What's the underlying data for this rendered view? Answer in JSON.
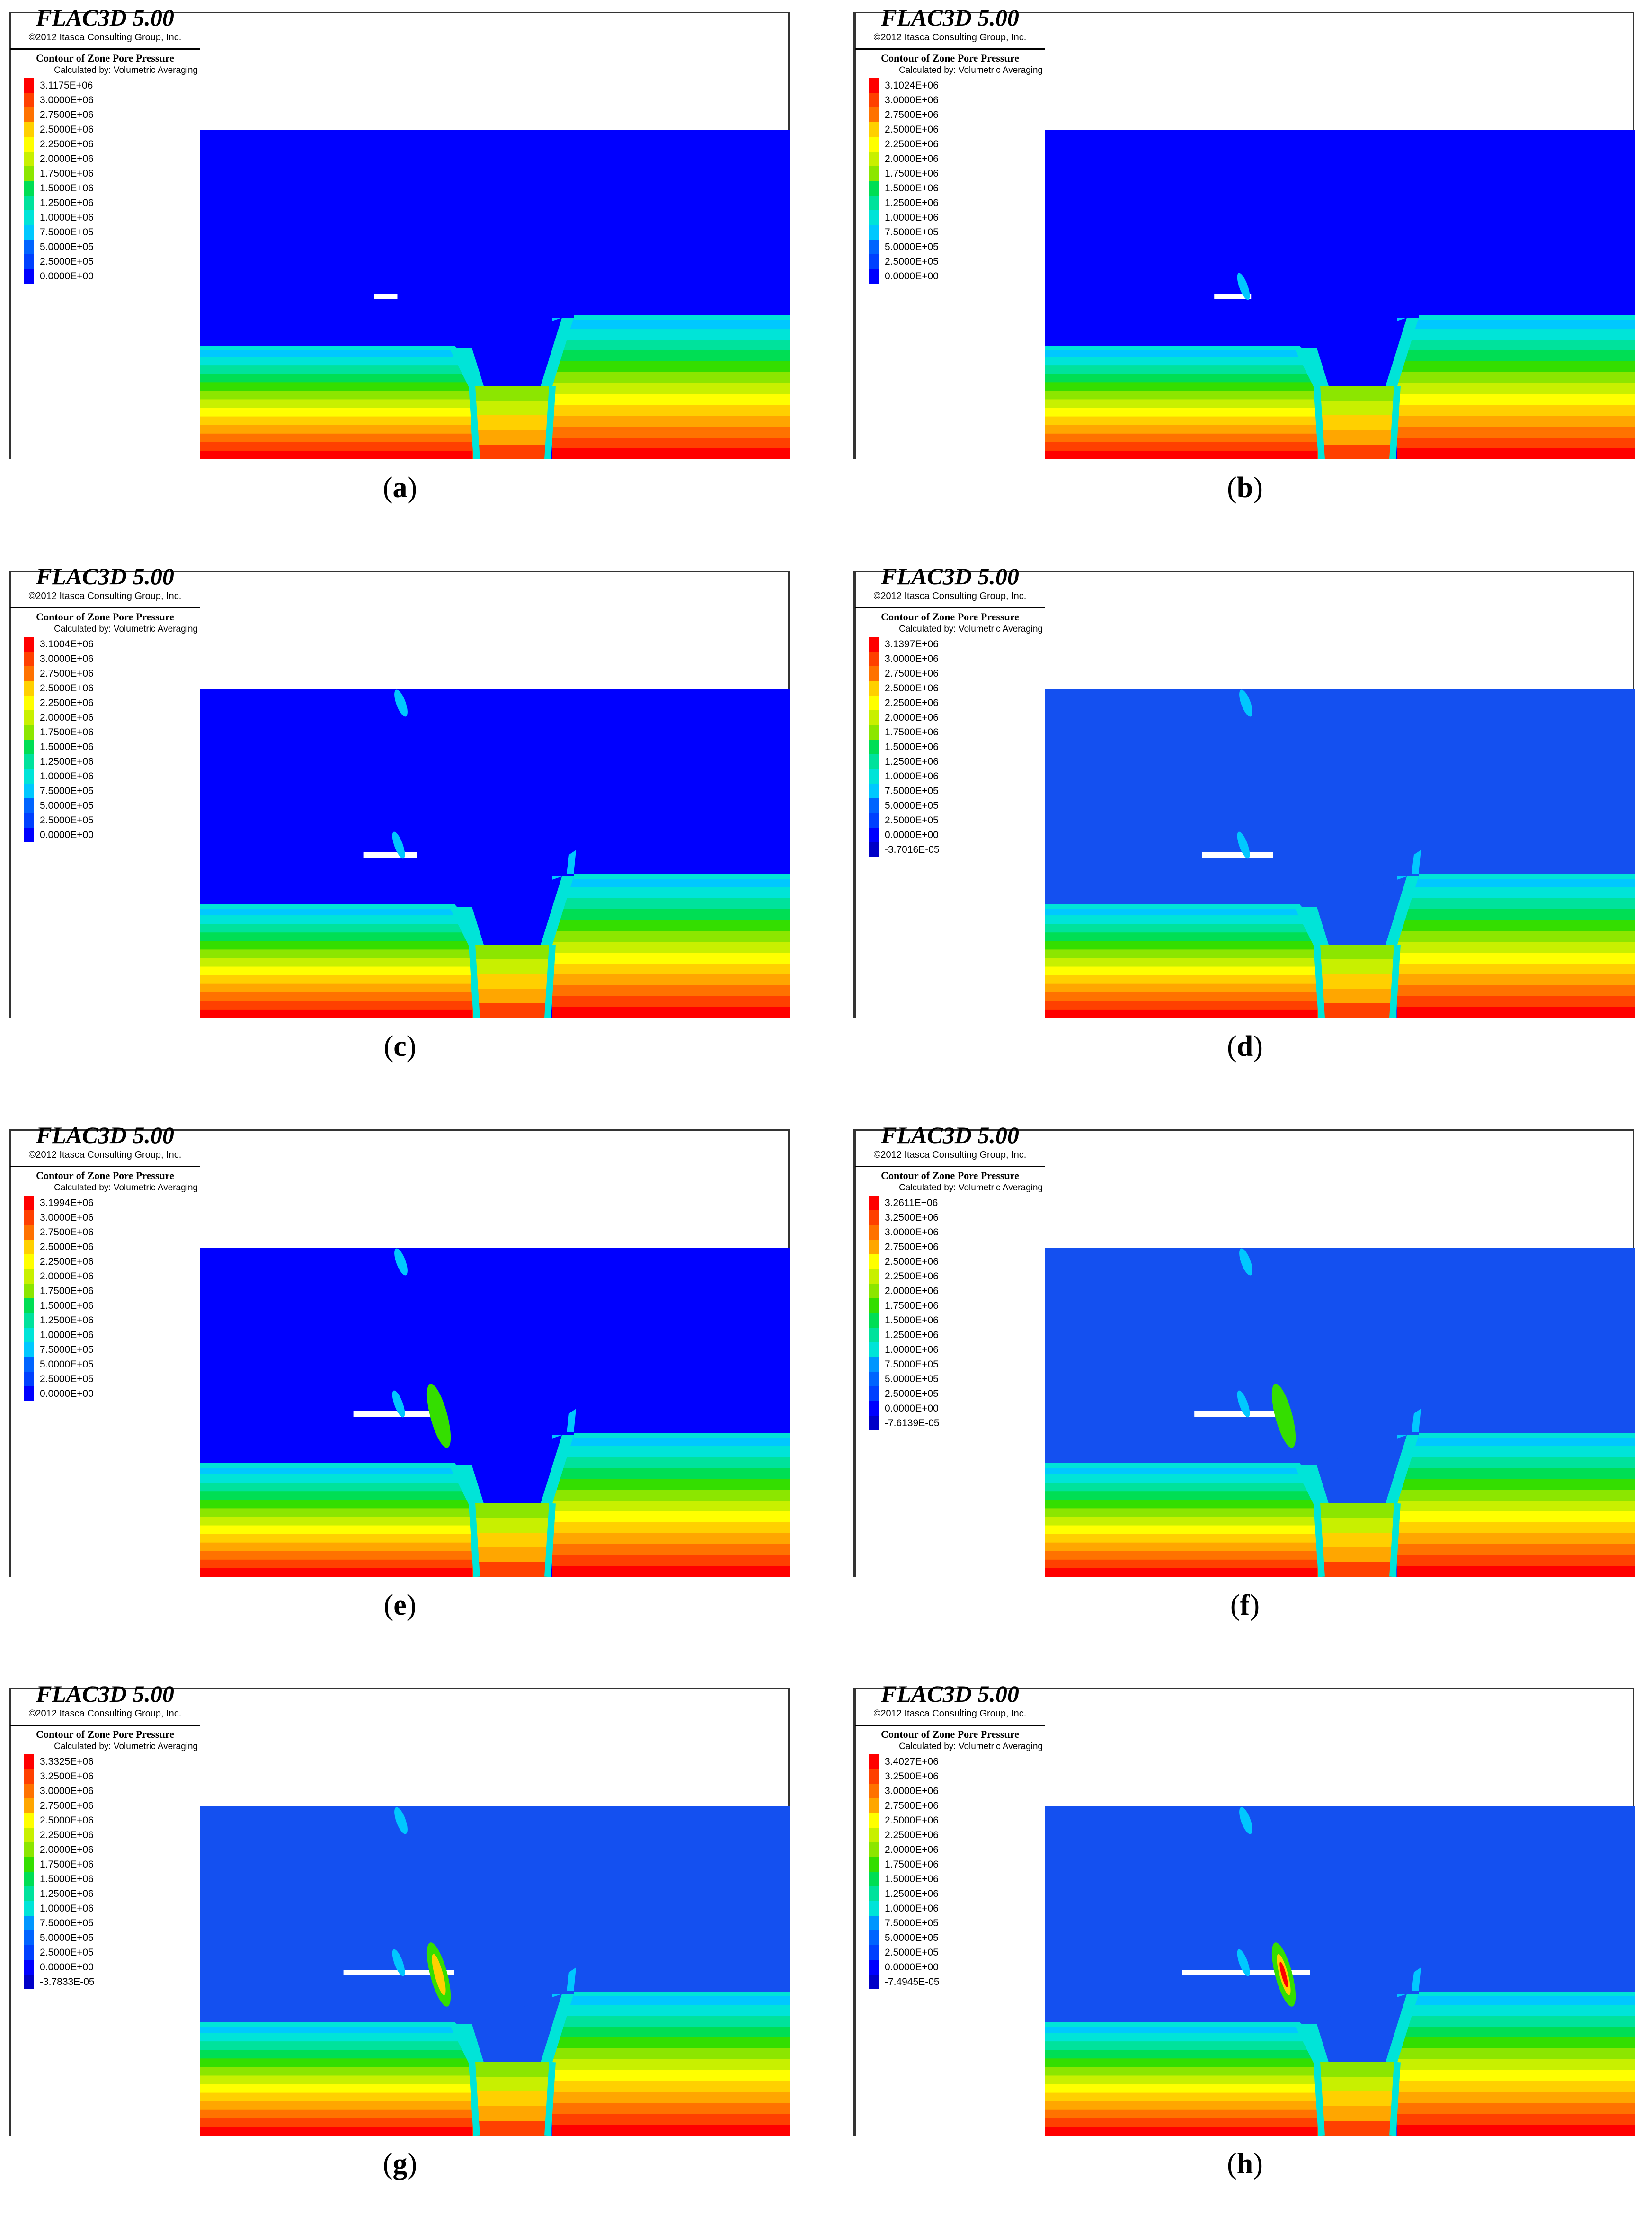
{
  "common": {
    "software": "FLAC3D 5.00",
    "copyright": "©2012 Itasca Consulting Group, Inc.",
    "contour_title": "Contour of Zone Pore Pressure",
    "calc_method": "Calculated by: Volumetric Averaging"
  },
  "colors": [
    "#ff0000",
    "#ff4000",
    "#ff7200",
    "#ffa600",
    "#ffd000",
    "#ffff00",
    "#c8f000",
    "#8ce600",
    "#34de00",
    "#00de54",
    "#00e29c",
    "#00e4d8",
    "#00c8ff",
    "#0096ff",
    "#0064ff",
    "#0040ff",
    "#0000ff"
  ],
  "panels": [
    {
      "label": "a",
      "legend": [
        "3.1175E+06",
        "3.0000E+06",
        "2.7500E+06",
        "2.5000E+06",
        "2.2500E+06",
        "2.0000E+06",
        "1.7500E+06",
        "1.5000E+06",
        "1.2500E+06",
        "1.0000E+06",
        "7.5000E+05",
        "5.0000E+05",
        "2.5000E+05",
        "0.0000E+00"
      ],
      "bg": "#0000ff",
      "excavation_progress": 0.08
    },
    {
      "label": "b",
      "legend": [
        "3.1024E+06",
        "3.0000E+06",
        "2.7500E+06",
        "2.5000E+06",
        "2.2500E+06",
        "2.0000E+06",
        "1.7500E+06",
        "1.5000E+06",
        "1.2500E+06",
        "1.0000E+06",
        "7.5000E+05",
        "5.0000E+05",
        "2.5000E+05",
        "0.0000E+00"
      ],
      "bg": "#0000ff",
      "excavation_progress": 0.2
    },
    {
      "label": "c",
      "legend": [
        "3.1004E+06",
        "3.0000E+06",
        "2.7500E+06",
        "2.5000E+06",
        "2.2500E+06",
        "2.0000E+06",
        "1.7500E+06",
        "1.5000E+06",
        "1.2500E+06",
        "1.0000E+06",
        "7.5000E+05",
        "5.0000E+05",
        "2.5000E+05",
        "0.0000E+00"
      ],
      "bg": "#0000ff",
      "excavation_progress": 0.35
    },
    {
      "label": "d",
      "legend": [
        "3.1397E+06",
        "3.0000E+06",
        "2.7500E+06",
        "2.5000E+06",
        "2.2500E+06",
        "2.0000E+06",
        "1.7500E+06",
        "1.5000E+06",
        "1.2500E+06",
        "1.0000E+06",
        "7.5000E+05",
        "5.0000E+05",
        "2.5000E+05",
        "0.0000E+00",
        "-3.7016E-05"
      ],
      "bg": "#1450f0",
      "excavation_progress": 0.5
    },
    {
      "label": "e",
      "legend": [
        "3.1994E+06",
        "3.0000E+06",
        "2.7500E+06",
        "2.5000E+06",
        "2.2500E+06",
        "2.0000E+06",
        "1.7500E+06",
        "1.5000E+06",
        "1.2500E+06",
        "1.0000E+06",
        "7.5000E+05",
        "5.0000E+05",
        "2.5000E+05",
        "0.0000E+00"
      ],
      "bg": "#0000ff",
      "excavation_progress": 0.6
    },
    {
      "label": "f",
      "legend": [
        "3.2611E+06",
        "3.2500E+06",
        "3.0000E+06",
        "2.7500E+06",
        "2.5000E+06",
        "2.2500E+06",
        "2.0000E+06",
        "1.7500E+06",
        "1.5000E+06",
        "1.2500E+06",
        "1.0000E+06",
        "7.5000E+05",
        "5.0000E+05",
        "2.5000E+05",
        "0.0000E+00",
        "-7.6139E-05"
      ],
      "bg": "#1450f0",
      "excavation_progress": 0.7
    },
    {
      "label": "g",
      "legend": [
        "3.3325E+06",
        "3.2500E+06",
        "3.0000E+06",
        "2.7500E+06",
        "2.5000E+06",
        "2.2500E+06",
        "2.0000E+06",
        "1.7500E+06",
        "1.5000E+06",
        "1.2500E+06",
        "1.0000E+06",
        "7.5000E+05",
        "5.0000E+05",
        "2.5000E+05",
        "0.0000E+00",
        "-3.7833E-05"
      ],
      "bg": "#1450f0",
      "excavation_progress": 0.85
    },
    {
      "label": "h",
      "legend": [
        "3.4027E+06",
        "3.2500E+06",
        "3.0000E+06",
        "2.7500E+06",
        "2.5000E+06",
        "2.2500E+06",
        "2.0000E+06",
        "1.7500E+06",
        "1.5000E+06",
        "1.2500E+06",
        "1.0000E+06",
        "7.5000E+05",
        "5.0000E+05",
        "2.5000E+05",
        "0.0000E+00",
        "-7.4945E-05"
      ],
      "bg": "#1450f0",
      "excavation_progress": 1.0
    }
  ]
}
